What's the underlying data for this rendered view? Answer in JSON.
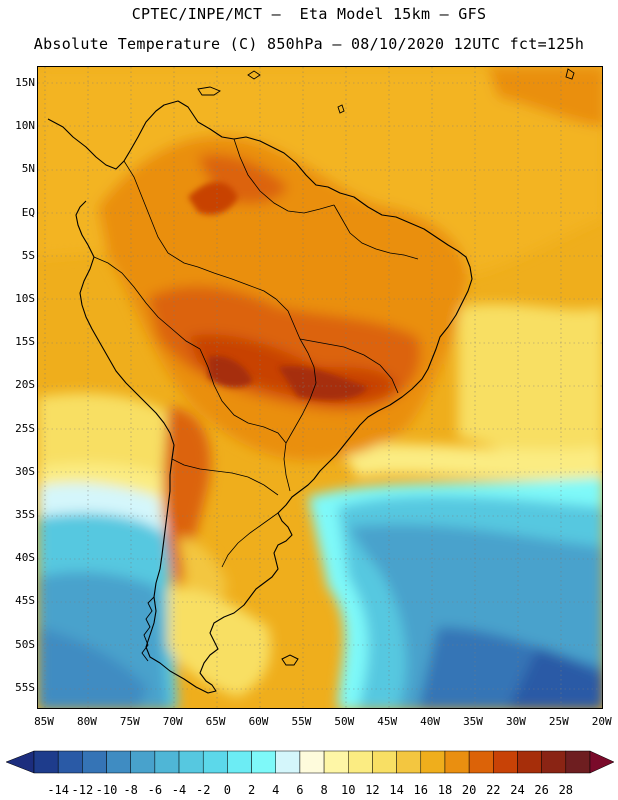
{
  "header": {
    "line1": "CPTEC/INPE/MCT –  Eta Model 15km – GFS",
    "line2": "Absolute Temperature (C) 850hPa – 08/10/2020 12UTC fct=125h"
  },
  "map": {
    "lat_labels": [
      "15N",
      "10N",
      "5N",
      "EQ",
      "5S",
      "10S",
      "15S",
      "20S",
      "25S",
      "30S",
      "35S",
      "40S",
      "45S",
      "50S",
      "55S"
    ],
    "lon_labels": [
      "85W",
      "80W",
      "75W",
      "70W",
      "65W",
      "60W",
      "55W",
      "50W",
      "45W",
      "40W",
      "35W",
      "30W",
      "25W",
      "20W"
    ],
    "lat_range": [
      16,
      -58
    ],
    "lon_range": [
      -86,
      -20
    ]
  },
  "colorbar": {
    "labels": [
      "-14",
      "-12",
      "-10",
      "-8",
      "-6",
      "-4",
      "-2",
      "0",
      "2",
      "4",
      "6",
      "8",
      "10",
      "12",
      "14",
      "16",
      "18",
      "20",
      "22",
      "24",
      "26",
      "28"
    ],
    "colors": [
      "#1e3c8c",
      "#2a5aa6",
      "#3574b6",
      "#3f8cc2",
      "#48a2cc",
      "#4fb6d6",
      "#56c8e0",
      "#5cd8ea",
      "#6cecf4",
      "#7ef9f9",
      "#d4f6fb",
      "#fefbdc",
      "#fef6a6",
      "#fbec82",
      "#f8df64",
      "#f3c640",
      "#efae1c",
      "#ea8f10",
      "#dc6308",
      "#c84206",
      "#a62e0a",
      "#8a2414",
      "#6e1e20"
    ],
    "under_color": "#1c2d7e",
    "over_color": "#7a0a2a"
  }
}
